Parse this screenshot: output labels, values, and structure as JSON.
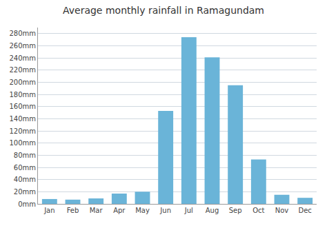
{
  "chart_data": {
    "type": "bar",
    "title": "Average monthly rainfall in Ramagundam",
    "categories": [
      "Jan",
      "Feb",
      "Mar",
      "Apr",
      "May",
      "Jun",
      "Jul",
      "Aug",
      "Sep",
      "Oct",
      "Nov",
      "Dec"
    ],
    "values": [
      8,
      7,
      9,
      17,
      20,
      153,
      274,
      241,
      195,
      73,
      15,
      10
    ],
    "color": "#6ab4d8",
    "ylim": [
      0,
      290
    ],
    "yticks": [
      {
        "value": 0,
        "label": "0mm"
      },
      {
        "value": 20,
        "label": "20mm"
      },
      {
        "value": 40,
        "label": "40mm"
      },
      {
        "value": 60,
        "label": "60mm"
      },
      {
        "value": 80,
        "label": "80mm"
      },
      {
        "value": 100,
        "label": "100mm"
      },
      {
        "value": 120,
        "label": "120mm"
      },
      {
        "value": 140,
        "label": "140mm"
      },
      {
        "value": 160,
        "label": "160mm"
      },
      {
        "value": 180,
        "label": "180mm"
      },
      {
        "value": 200,
        "label": "200mm"
      },
      {
        "value": 220,
        "label": "220mm"
      },
      {
        "value": 240,
        "label": "240mm"
      },
      {
        "value": 260,
        "label": "260mm"
      },
      {
        "value": 280,
        "label": "280mm"
      }
    ],
    "grid": true
  }
}
